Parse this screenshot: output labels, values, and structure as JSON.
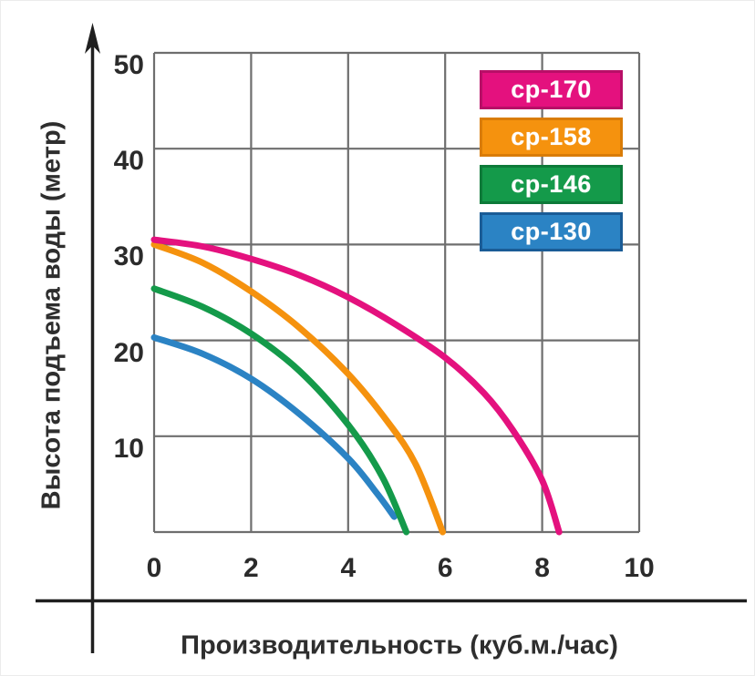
{
  "chart_data": {
    "type": "line",
    "title": "",
    "xlabel": "Производительность (куб.м./час)",
    "ylabel": "Высота подъема воды (метр)",
    "xlim": [
      0,
      10
    ],
    "ylim": [
      0,
      50
    ],
    "xticks": [
      "0",
      "2",
      "4",
      "6",
      "8",
      "10"
    ],
    "xtick_values": [
      0,
      2,
      4,
      6,
      8,
      10
    ],
    "yticks": [
      "10",
      "20",
      "30",
      "40",
      "50"
    ],
    "ytick_values": [
      10,
      20,
      30,
      40,
      50
    ],
    "grid": true,
    "legend_position": "top-right",
    "series": [
      {
        "key": "cp-170",
        "name": "ср-170",
        "color": "#e4117e",
        "badge_border": "#b80f67",
        "max_head_m": 30.5,
        "max_flow_m3h": 8.35,
        "points": [
          [
            0,
            30.5
          ],
          [
            1,
            29.8
          ],
          [
            2,
            28.5
          ],
          [
            3,
            26.8
          ],
          [
            4,
            24.5
          ],
          [
            5,
            21.6
          ],
          [
            6,
            18.2
          ],
          [
            6.8,
            14.5
          ],
          [
            7.4,
            10.6
          ],
          [
            8,
            5.4
          ],
          [
            8.35,
            0
          ]
        ]
      },
      {
        "key": "cp-158",
        "name": "ср-158",
        "color": "#f5920e",
        "badge_border": "#d97c07",
        "max_head_m": 30,
        "max_flow_m3h": 5.95,
        "points": [
          [
            0,
            30
          ],
          [
            1,
            28.1
          ],
          [
            2,
            25.1
          ],
          [
            3,
            21.3
          ],
          [
            4,
            16.5
          ],
          [
            4.8,
            11.6
          ],
          [
            5.4,
            7
          ],
          [
            5.95,
            0
          ]
        ]
      },
      {
        "key": "cp-146",
        "name": "ср-146",
        "color": "#149a4a",
        "badge_border": "#0d7a39",
        "max_head_m": 25.4,
        "max_flow_m3h": 5.2,
        "points": [
          [
            0,
            25.4
          ],
          [
            1,
            23.5
          ],
          [
            2,
            20.7
          ],
          [
            3,
            16.8
          ],
          [
            4,
            11.2
          ],
          [
            4.7,
            5.8
          ],
          [
            5.2,
            0
          ]
        ]
      },
      {
        "key": "cp-130",
        "name": "ср-130",
        "color": "#2b83c4",
        "badge_border": "#1a5c96",
        "max_head_m": 20.3,
        "max_flow_m3h": 4.95,
        "points": [
          [
            0,
            20.3
          ],
          [
            1,
            18.6
          ],
          [
            2,
            16
          ],
          [
            3,
            12.3
          ],
          [
            4,
            7.7
          ],
          [
            4.6,
            4
          ],
          [
            4.95,
            1.6
          ]
        ]
      }
    ]
  },
  "style": {
    "grid_color": "#6e6e6e",
    "axis_color": "#1f1f1f",
    "tick_text_color": "#2b2b2b",
    "legend_text_color": "#ffffff",
    "curve_width": 7
  }
}
